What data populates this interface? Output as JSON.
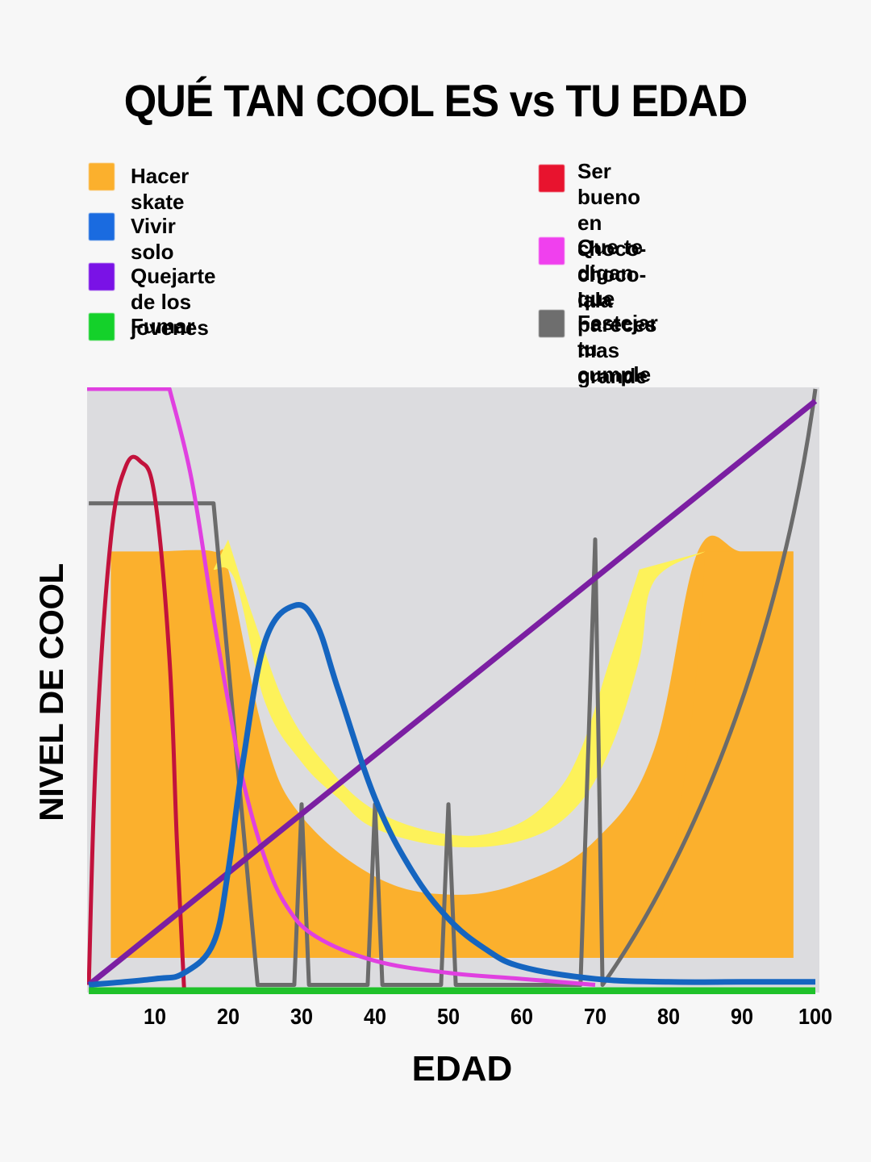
{
  "chart_data": {
    "type": "line",
    "title": "QUÉ TAN COOL ES vs TU EDAD",
    "xlabel": "EDAD",
    "ylabel": "NIVEL DE COOL",
    "xlim": [
      0,
      100
    ],
    "ylim": [
      0,
      100
    ],
    "xticks": [
      10,
      20,
      30,
      40,
      50,
      60,
      70,
      80,
      90,
      100
    ],
    "grid": false,
    "legend_position": "top",
    "background_color": "#dcdcdf",
    "series": [
      {
        "name": "Hacer skate",
        "color": "#fbb02d",
        "style": "area (U-shaped half-pipe with yellow inner band)",
        "inner_band_color": "#fdf25a",
        "x": [
          4,
          10,
          18,
          20,
          25,
          30,
          40,
          50,
          60,
          70,
          78,
          84,
          90,
          97
        ],
        "values": [
          73,
          73,
          73,
          70,
          42,
          29,
          19,
          16,
          18,
          25,
          40,
          73,
          73,
          73
        ]
      },
      {
        "name": "Vivir solo",
        "color": "#1565c0",
        "x": [
          1,
          10,
          14,
          18,
          20,
          22,
          25,
          29,
          32,
          35,
          40,
          45,
          50,
          55,
          60,
          70,
          80,
          90,
          100
        ],
        "values": [
          1,
          2,
          3,
          8,
          20,
          38,
          58,
          64,
          61,
          50,
          32,
          20,
          12,
          7,
          4,
          2,
          1.5,
          1.5,
          1.5
        ]
      },
      {
        "name": "Quejarte de los jovenes",
        "color": "#7b1fa2",
        "x": [
          1,
          100
        ],
        "values": [
          1,
          98
        ]
      },
      {
        "name": "Fumar",
        "color": "#1fc12a",
        "x": [
          1,
          100
        ],
        "values": [
          0,
          0
        ]
      },
      {
        "name": "Ser bueno en choco-choco-lala",
        "color": "#c2123c",
        "x": [
          1,
          2,
          4,
          6,
          8,
          10,
          12,
          13,
          14
        ],
        "values": [
          1,
          40,
          75,
          87,
          88,
          82,
          55,
          25,
          0
        ]
      },
      {
        "name": "Que te digan que pareces mas grande",
        "color": "#e040e0",
        "x": [
          1,
          12,
          15,
          18,
          20,
          22,
          25,
          28,
          32,
          40,
          50,
          60,
          70
        ],
        "values": [
          100,
          100,
          85,
          62,
          48,
          35,
          22,
          14,
          9,
          5,
          3,
          2,
          1
        ]
      },
      {
        "name": "Festejar tu cumple",
        "color": "#6b6b6b",
        "x": [
          1,
          18,
          24,
          29,
          30,
          31,
          39,
          40,
          41,
          49,
          50,
          51,
          68,
          70,
          71,
          80,
          90,
          100
        ],
        "values": [
          81,
          81,
          1,
          1,
          31,
          1,
          1,
          31,
          1,
          1,
          31,
          1,
          1,
          75,
          1,
          18,
          48,
          100
        ]
      }
    ]
  },
  "title": "QUÉ TAN COOL ES vs TU EDAD",
  "legend": {
    "left": [
      {
        "label": "Hacer skate",
        "color": "#fbb02d"
      },
      {
        "label": "Vivir solo",
        "color": "#1a6be0"
      },
      {
        "label": "Quejarte de los jovenes",
        "color": "#7a12e6"
      },
      {
        "label": "Fumar",
        "color": "#14d12a"
      }
    ],
    "right": [
      {
        "label": "Ser bueno en choco-\nchoco-lala",
        "color": "#e8132e"
      },
      {
        "label": "Que te digan que\npareces mas grande",
        "color": "#f040ee"
      },
      {
        "label": "Festejar tu cumple",
        "color": "#6e6e6e"
      }
    ]
  },
  "axes": {
    "xlabel": "EDAD",
    "ylabel": "NIVEL DE COOL",
    "xticks": [
      "10",
      "20",
      "30",
      "40",
      "50",
      "60",
      "70",
      "80",
      "90",
      "100"
    ]
  }
}
